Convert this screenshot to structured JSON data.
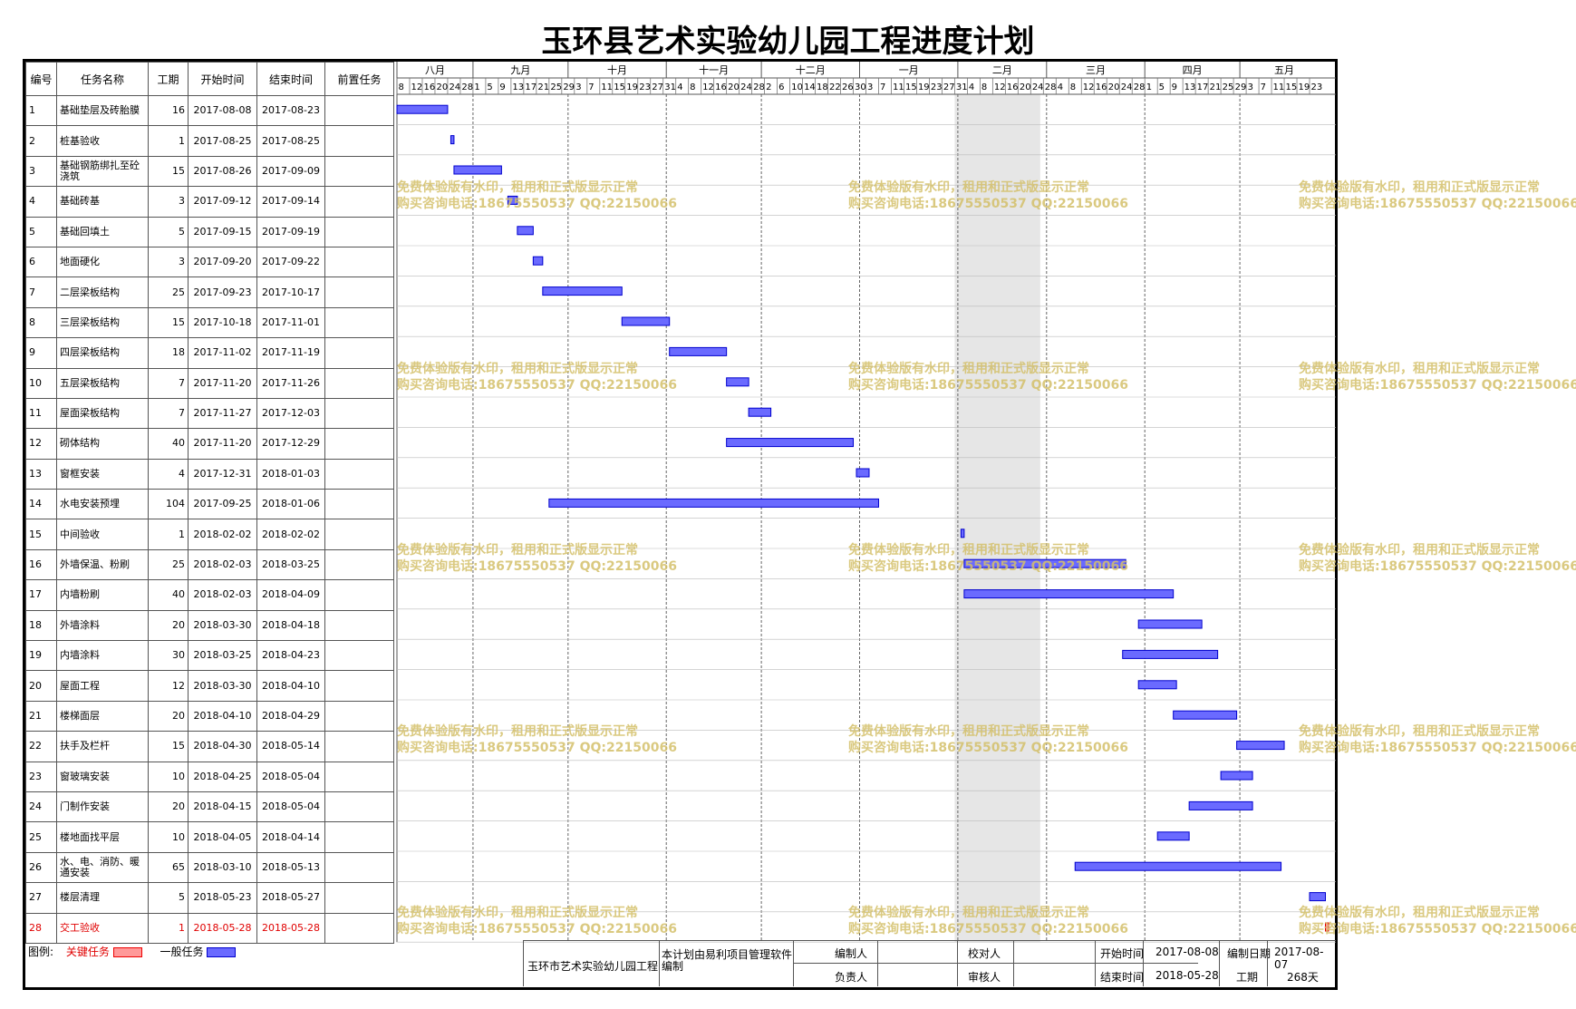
{
  "title": "玉环县艺术实验幼儿园工程进度计划",
  "columns": [
    "编号",
    "任务名称",
    "工期",
    "开始时间",
    "结束时间",
    "前置任务"
  ],
  "chart_data": {
    "type": "gantt",
    "months": [
      "八月",
      "九月",
      "十月",
      "十一月",
      "十二月",
      "一月",
      "二月",
      "三月",
      "四月",
      "五月"
    ],
    "day_ticks": [
      "8",
      "12",
      "16",
      "20",
      "24",
      "28",
      "1",
      "5",
      "9",
      "13",
      "17",
      "21",
      "25",
      "29",
      "3",
      "7",
      "11",
      "15",
      "19",
      "23",
      "27",
      "31",
      "4",
      "8",
      "12",
      "16",
      "20",
      "24",
      "28",
      "2",
      "6",
      "10",
      "14",
      "18",
      "22",
      "26",
      "30",
      "3",
      "7",
      "11",
      "15",
      "19",
      "23",
      "27",
      "31",
      "4",
      "8",
      "12",
      "16",
      "20",
      "24",
      "28",
      "4",
      "8",
      "12",
      "16",
      "20",
      "24",
      "28",
      "1",
      "5",
      "9",
      "13",
      "17",
      "21",
      "25",
      "29",
      "3",
      "7",
      "11",
      "15",
      "19",
      "23"
    ],
    "tasks": [
      {
        "id": "1",
        "name": "基础垫层及砖胎膜",
        "dur": "16",
        "start": "2017-08-08",
        "end": "2017-08-23",
        "pred": "",
        "critical": false
      },
      {
        "id": "2",
        "name": "桩基验收",
        "dur": "1",
        "start": "2017-08-25",
        "end": "2017-08-25",
        "pred": "",
        "critical": false
      },
      {
        "id": "3",
        "name": "基础钢筋绑扎至砼浇筑",
        "dur": "15",
        "start": "2017-08-26",
        "end": "2017-09-09",
        "pred": "",
        "critical": false
      },
      {
        "id": "4",
        "name": "基础砖基",
        "dur": "3",
        "start": "2017-09-12",
        "end": "2017-09-14",
        "pred": "",
        "critical": false
      },
      {
        "id": "5",
        "name": "基础回填土",
        "dur": "5",
        "start": "2017-09-15",
        "end": "2017-09-19",
        "pred": "",
        "critical": false
      },
      {
        "id": "6",
        "name": "地面硬化",
        "dur": "3",
        "start": "2017-09-20",
        "end": "2017-09-22",
        "pred": "",
        "critical": false
      },
      {
        "id": "7",
        "name": "二层梁板结构",
        "dur": "25",
        "start": "2017-09-23",
        "end": "2017-10-17",
        "pred": "",
        "critical": false
      },
      {
        "id": "8",
        "name": "三层梁板结构",
        "dur": "15",
        "start": "2017-10-18",
        "end": "2017-11-01",
        "pred": "",
        "critical": false
      },
      {
        "id": "9",
        "name": "四层梁板结构",
        "dur": "18",
        "start": "2017-11-02",
        "end": "2017-11-19",
        "pred": "",
        "critical": false
      },
      {
        "id": "10",
        "name": "五层梁板结构",
        "dur": "7",
        "start": "2017-11-20",
        "end": "2017-11-26",
        "pred": "",
        "critical": false
      },
      {
        "id": "11",
        "name": "屋面梁板结构",
        "dur": "7",
        "start": "2017-11-27",
        "end": "2017-12-03",
        "pred": "",
        "critical": false
      },
      {
        "id": "12",
        "name": "砌体结构",
        "dur": "40",
        "start": "2017-11-20",
        "end": "2017-12-29",
        "pred": "",
        "critical": false
      },
      {
        "id": "13",
        "name": "窗框安装",
        "dur": "4",
        "start": "2017-12-31",
        "end": "2018-01-03",
        "pred": "",
        "critical": false
      },
      {
        "id": "14",
        "name": "水电安装预埋",
        "dur": "104",
        "start": "2017-09-25",
        "end": "2018-01-06",
        "pred": "",
        "critical": false
      },
      {
        "id": "15",
        "name": "中间验收",
        "dur": "1",
        "start": "2018-02-02",
        "end": "2018-02-02",
        "pred": "",
        "critical": false
      },
      {
        "id": "16",
        "name": "外墙保温、粉刷",
        "dur": "25",
        "start": "2018-02-03",
        "end": "2018-03-25",
        "pred": "",
        "critical": false
      },
      {
        "id": "17",
        "name": "内墙粉刷",
        "dur": "40",
        "start": "2018-02-03",
        "end": "2018-04-09",
        "pred": "",
        "critical": false
      },
      {
        "id": "18",
        "name": "外墙涂料",
        "dur": "20",
        "start": "2018-03-30",
        "end": "2018-04-18",
        "pred": "",
        "critical": false
      },
      {
        "id": "19",
        "name": "内墙涂料",
        "dur": "30",
        "start": "2018-03-25",
        "end": "2018-04-23",
        "pred": "",
        "critical": false
      },
      {
        "id": "20",
        "name": "屋面工程",
        "dur": "12",
        "start": "2018-03-30",
        "end": "2018-04-10",
        "pred": "",
        "critical": false
      },
      {
        "id": "21",
        "name": "楼梯面层",
        "dur": "20",
        "start": "2018-04-10",
        "end": "2018-04-29",
        "pred": "",
        "critical": false
      },
      {
        "id": "22",
        "name": "扶手及栏杆",
        "dur": "15",
        "start": "2018-04-30",
        "end": "2018-05-14",
        "pred": "",
        "critical": false
      },
      {
        "id": "23",
        "name": "窗玻璃安装",
        "dur": "10",
        "start": "2018-04-25",
        "end": "2018-05-04",
        "pred": "",
        "critical": false
      },
      {
        "id": "24",
        "name": "门制作安装",
        "dur": "20",
        "start": "2018-04-15",
        "end": "2018-05-04",
        "pred": "",
        "critical": false
      },
      {
        "id": "25",
        "name": "楼地面找平层",
        "dur": "10",
        "start": "2018-04-05",
        "end": "2018-04-14",
        "pred": "",
        "critical": false
      },
      {
        "id": "26",
        "name": "水、电、消防、暖通安装",
        "dur": "65",
        "start": "2018-03-10",
        "end": "2018-05-13",
        "pred": "",
        "critical": false
      },
      {
        "id": "27",
        "name": "楼层清理",
        "dur": "5",
        "start": "2018-05-23",
        "end": "2018-05-27",
        "pred": "",
        "critical": false
      },
      {
        "id": "28",
        "name": "交工验收",
        "dur": "1",
        "start": "2018-05-28",
        "end": "2018-05-28",
        "pred": "",
        "critical": true
      }
    ],
    "holiday": {
      "start": "2018-01-31",
      "end": "2018-02-27"
    },
    "colors": {
      "normal": "#6a6aff",
      "normal_border": "#0000cc",
      "critical": "#ff9999",
      "critical_border": "#e00000",
      "holiday": "#e6e6e6"
    }
  },
  "legend": {
    "label": "图例:",
    "critical": "关键任务",
    "normal": "一般任务"
  },
  "footer": {
    "project": "玉环市艺术实验幼儿园工程",
    "note": "本计划由易利项目管理软件编制",
    "editor_label": "编制人",
    "owner_label": "负责人",
    "checker_label": "校对人",
    "reviewer_label": "审核人",
    "start_label": "开始时间",
    "start_value": "2017-08-08",
    "end_label": "结束时间",
    "end_value": "2018-05-28",
    "date_label": "编制日期",
    "date_value": "2017-08-07",
    "dur_label": "工期",
    "dur_value": "268天"
  },
  "watermark": {
    "line1": "免费体验版有水印，租用和正式版显示正常",
    "line2": "购买咨询电话:18675550537 QQ:22150066"
  }
}
